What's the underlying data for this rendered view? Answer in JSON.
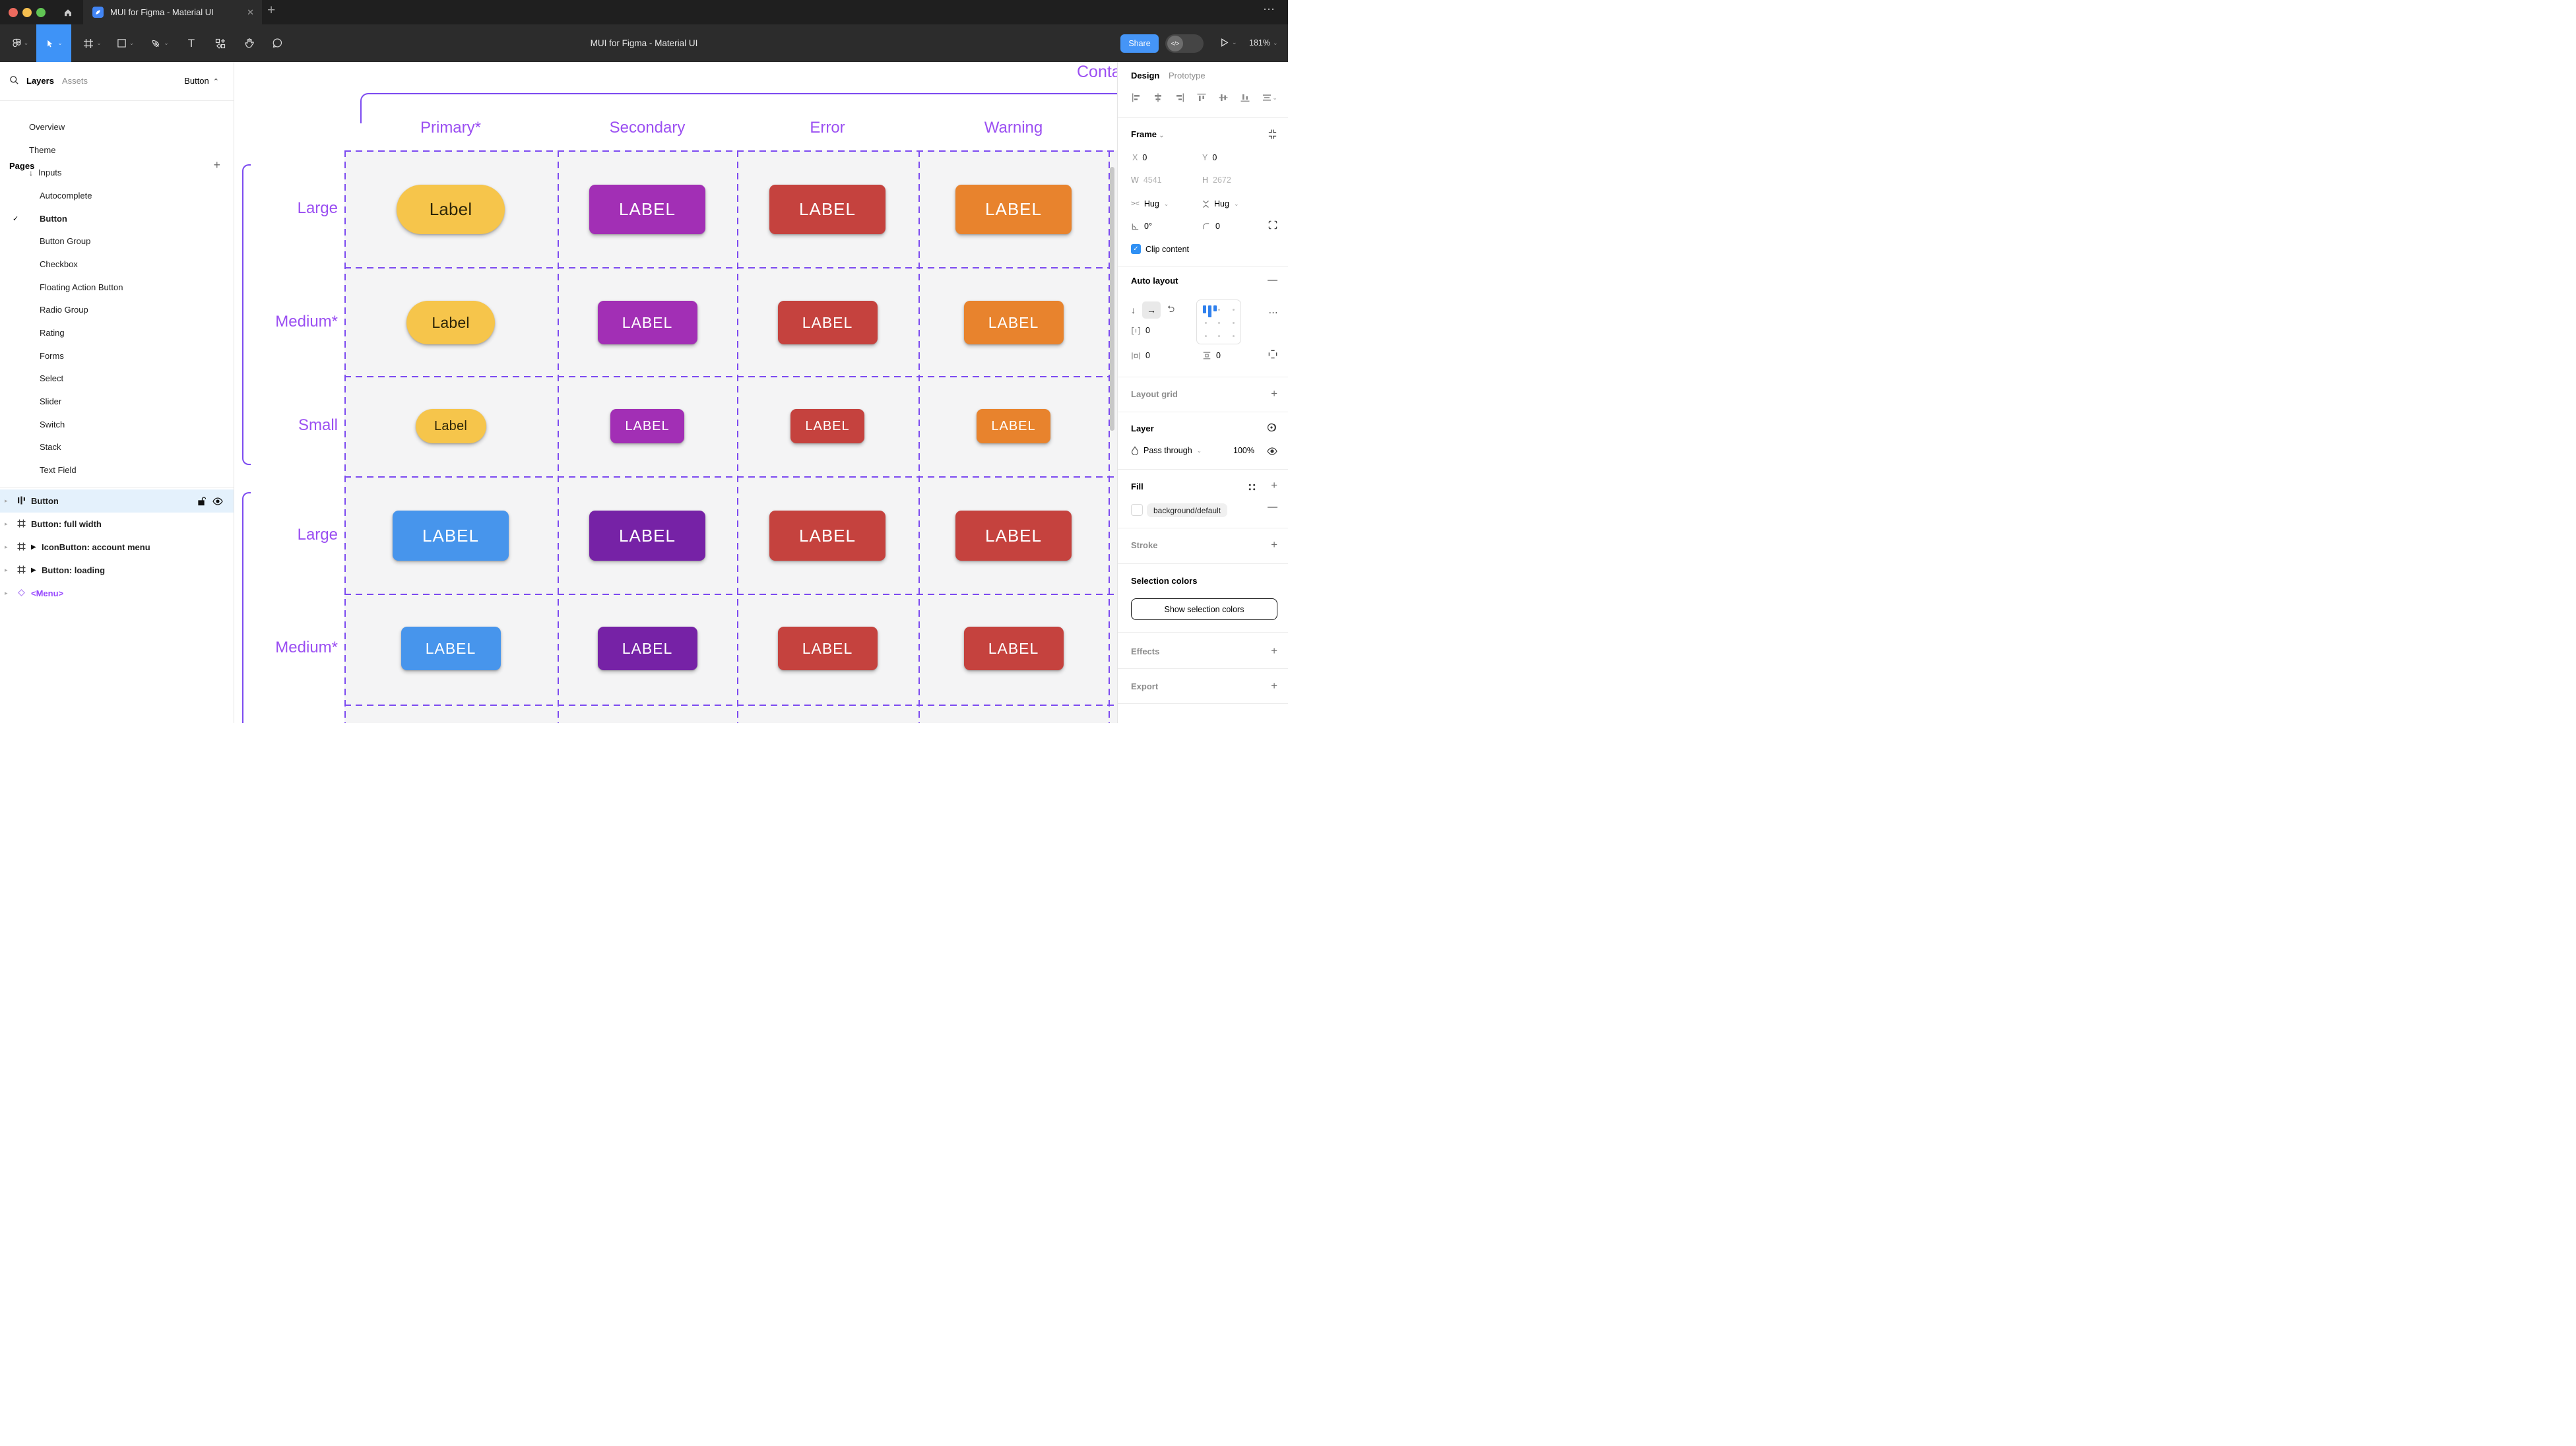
{
  "titlebar": {
    "tab_title": "MUI for Figma - Material UI",
    "close_glyph": "✕",
    "new_tab_glyph": "+",
    "more_glyph": "⋯"
  },
  "toolbar": {
    "doc_title": "MUI for Figma - Material UI",
    "share_label": "Share",
    "dev_toggle_glyph": "</>",
    "zoom_level": "181%"
  },
  "left_sidebar": {
    "tabs": {
      "layers": "Layers",
      "assets": "Assets"
    },
    "page_selector": "Button",
    "pages_header": "Pages",
    "pages": [
      {
        "label": "Overview",
        "level": 1
      },
      {
        "label": "Theme",
        "level": 1
      },
      {
        "label": "Inputs",
        "level": 1,
        "arrow": true
      },
      {
        "label": "Autocomplete",
        "level": 2
      },
      {
        "label": "Button",
        "level": 2,
        "checked": true,
        "bold": true
      },
      {
        "label": "Button Group",
        "level": 2
      },
      {
        "label": "Checkbox",
        "level": 2
      },
      {
        "label": "Floating Action Button",
        "level": 2
      },
      {
        "label": "Radio Group",
        "level": 2
      },
      {
        "label": "Rating",
        "level": 2
      },
      {
        "label": "Forms",
        "level": 2
      },
      {
        "label": "Select",
        "level": 2
      },
      {
        "label": "Slider",
        "level": 2
      },
      {
        "label": "Switch",
        "level": 2
      },
      {
        "label": "Stack",
        "level": 2
      },
      {
        "label": "Text Field",
        "level": 2
      }
    ],
    "layers": [
      {
        "label": "Button",
        "icon": "autolayout",
        "selected": true
      },
      {
        "label": "Button: full width",
        "icon": "frame",
        "bold": true
      },
      {
        "label": "IconButton: account menu",
        "icon": "frame",
        "bold": true,
        "component_arrow": true
      },
      {
        "label": "Button: loading",
        "icon": "frame",
        "bold": true,
        "component_arrow": true
      },
      {
        "label": "<Menu>",
        "icon": "diamond",
        "purple": true
      }
    ]
  },
  "canvas": {
    "frame_name": "Contained",
    "columns": [
      "Primary*",
      "Secondary",
      "Error",
      "Warning"
    ],
    "rows": [
      {
        "label": "Large",
        "size": "large",
        "buttons": [
          {
            "text": "Label",
            "bg": "#f6c54b",
            "fg": "#2e2608",
            "shape": "pill"
          },
          {
            "text": "LABEL",
            "bg": "#a22fb5",
            "fg": "#ffffff",
            "shape": "rounded"
          },
          {
            "text": "LABEL",
            "bg": "#c5423e",
            "fg": "#ffffff",
            "shape": "rounded"
          },
          {
            "text": "LABEL",
            "bg": "#e8832d",
            "fg": "#ffffff",
            "shape": "rounded"
          }
        ]
      },
      {
        "label": "Medium*",
        "size": "medium",
        "buttons": [
          {
            "text": "Label",
            "bg": "#f6c54b",
            "fg": "#2e2608",
            "shape": "pill"
          },
          {
            "text": "LABEL",
            "bg": "#a22fb5",
            "fg": "#ffffff",
            "shape": "rounded"
          },
          {
            "text": "LABEL",
            "bg": "#c5423e",
            "fg": "#ffffff",
            "shape": "rounded"
          },
          {
            "text": "LABEL",
            "bg": "#e8832d",
            "fg": "#ffffff",
            "shape": "rounded"
          }
        ]
      },
      {
        "label": "Small",
        "size": "small",
        "buttons": [
          {
            "text": "Label",
            "bg": "#f6c54b",
            "fg": "#2e2608",
            "shape": "pill"
          },
          {
            "text": "LABEL",
            "bg": "#a22fb5",
            "fg": "#ffffff",
            "shape": "rounded"
          },
          {
            "text": "LABEL",
            "bg": "#c5423e",
            "fg": "#ffffff",
            "shape": "rounded"
          },
          {
            "text": "LABEL",
            "bg": "#e8832d",
            "fg": "#ffffff",
            "shape": "rounded"
          }
        ]
      },
      {
        "label": "Large",
        "size": "large",
        "buttons": [
          {
            "text": "LABEL",
            "bg": "#4795ec",
            "fg": "#ffffff",
            "shape": "rounded"
          },
          {
            "text": "LABEL",
            "bg": "#7622a6",
            "fg": "#ffffff",
            "shape": "rounded"
          },
          {
            "text": "LABEL",
            "bg": "#c5423e",
            "fg": "#ffffff",
            "shape": "rounded"
          },
          {
            "text": "LABEL",
            "bg": "#c5423e",
            "fg": "#ffffff",
            "shape": "rounded"
          }
        ]
      },
      {
        "label": "Medium*",
        "size": "medium",
        "buttons": [
          {
            "text": "LABEL",
            "bg": "#4795ec",
            "fg": "#ffffff",
            "shape": "rounded"
          },
          {
            "text": "LABEL",
            "bg": "#7622a6",
            "fg": "#ffffff",
            "shape": "rounded"
          },
          {
            "text": "LABEL",
            "bg": "#c5423e",
            "fg": "#ffffff",
            "shape": "rounded"
          },
          {
            "text": "LABEL",
            "bg": "#c5423e",
            "fg": "#ffffff",
            "shape": "rounded"
          }
        ]
      }
    ],
    "accent_line_color": "#7c4af0",
    "accent_text_color": "#9b4ff2"
  },
  "right_sidebar": {
    "tabs": {
      "design": "Design",
      "prototype": "Prototype"
    },
    "frame": {
      "header": "Frame",
      "x_label": "X",
      "x": "0",
      "y_label": "Y",
      "y": "0",
      "w_label": "W",
      "w": "4541",
      "h_label": "H",
      "h": "2672",
      "hug_horizontal": "Hug",
      "hug_vertical": "Hug",
      "rotation": "0°",
      "corner_radius": "0",
      "clip_label": "Clip content",
      "clip_checked": true
    },
    "auto_layout": {
      "header": "Auto layout",
      "gap": "0",
      "padding_horizontal": "0",
      "padding_vertical": "0"
    },
    "layout_grid": {
      "header": "Layout grid"
    },
    "layer": {
      "header": "Layer",
      "blend_mode": "Pass through",
      "opacity": "100%"
    },
    "fill": {
      "header": "Fill",
      "token": "background/default"
    },
    "stroke": {
      "header": "Stroke"
    },
    "selection_colors": {
      "header": "Selection colors",
      "button_label": "Show selection colors"
    },
    "effects": {
      "header": "Effects"
    },
    "export": {
      "header": "Export"
    }
  }
}
